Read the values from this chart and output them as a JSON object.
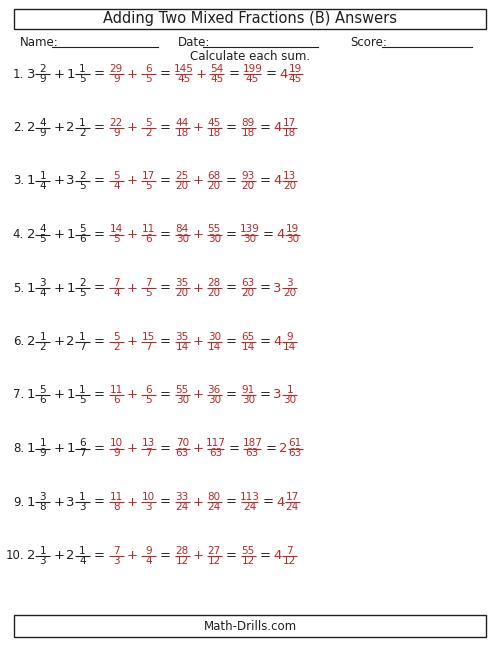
{
  "title": "Adding Two Mixed Fractions (B) Answers",
  "footer": "Math-Drills.com",
  "instruction": "Calculate each sum.",
  "name_label": "Name:",
  "date_label": "Date:",
  "score_label": "Score:",
  "black": "#231f20",
  "red": "#b52a2a",
  "problems": [
    {
      "num": "1.",
      "w1": "3",
      "n1": "2",
      "d1": "9",
      "w2": "1",
      "n2": "1",
      "d2": "5",
      "rn1": "29",
      "rd1": "9",
      "rn2": "6",
      "rd2": "5",
      "cn1": "145",
      "cd1": "45",
      "cn2": "54",
      "cd2": "45",
      "sn": "199",
      "sd": "45",
      "fw": "4",
      "fn": "19",
      "fd": "45"
    },
    {
      "num": "2.",
      "w1": "2",
      "n1": "4",
      "d1": "9",
      "w2": "2",
      "n2": "1",
      "d2": "2",
      "rn1": "22",
      "rd1": "9",
      "rn2": "5",
      "rd2": "2",
      "cn1": "44",
      "cd1": "18",
      "cn2": "45",
      "cd2": "18",
      "sn": "89",
      "sd": "18",
      "fw": "4",
      "fn": "17",
      "fd": "18"
    },
    {
      "num": "3.",
      "w1": "1",
      "n1": "1",
      "d1": "4",
      "w2": "3",
      "n2": "2",
      "d2": "5",
      "rn1": "5",
      "rd1": "4",
      "rn2": "17",
      "rd2": "5",
      "cn1": "25",
      "cd1": "20",
      "cn2": "68",
      "cd2": "20",
      "sn": "93",
      "sd": "20",
      "fw": "4",
      "fn": "13",
      "fd": "20"
    },
    {
      "num": "4.",
      "w1": "2",
      "n1": "4",
      "d1": "5",
      "w2": "1",
      "n2": "5",
      "d2": "6",
      "rn1": "14",
      "rd1": "5",
      "rn2": "11",
      "rd2": "6",
      "cn1": "84",
      "cd1": "30",
      "cn2": "55",
      "cd2": "30",
      "sn": "139",
      "sd": "30",
      "fw": "4",
      "fn": "19",
      "fd": "30"
    },
    {
      "num": "5.",
      "w1": "1",
      "n1": "3",
      "d1": "4",
      "w2": "1",
      "n2": "2",
      "d2": "5",
      "rn1": "7",
      "rd1": "4",
      "rn2": "7",
      "rd2": "5",
      "cn1": "35",
      "cd1": "20",
      "cn2": "28",
      "cd2": "20",
      "sn": "63",
      "sd": "20",
      "fw": "3",
      "fn": "3",
      "fd": "20"
    },
    {
      "num": "6.",
      "w1": "2",
      "n1": "1",
      "d1": "2",
      "w2": "2",
      "n2": "1",
      "d2": "7",
      "rn1": "5",
      "rd1": "2",
      "rn2": "15",
      "rd2": "7",
      "cn1": "35",
      "cd1": "14",
      "cn2": "30",
      "cd2": "14",
      "sn": "65",
      "sd": "14",
      "fw": "4",
      "fn": "9",
      "fd": "14"
    },
    {
      "num": "7.",
      "w1": "1",
      "n1": "5",
      "d1": "6",
      "w2": "1",
      "n2": "1",
      "d2": "5",
      "rn1": "11",
      "rd1": "6",
      "rn2": "6",
      "rd2": "5",
      "cn1": "55",
      "cd1": "30",
      "cn2": "36",
      "cd2": "30",
      "sn": "91",
      "sd": "30",
      "fw": "3",
      "fn": "1",
      "fd": "30"
    },
    {
      "num": "8.",
      "w1": "1",
      "n1": "1",
      "d1": "9",
      "w2": "1",
      "n2": "6",
      "d2": "7",
      "rn1": "10",
      "rd1": "9",
      "rn2": "13",
      "rd2": "7",
      "cn1": "70",
      "cd1": "63",
      "cn2": "117",
      "cd2": "63",
      "sn": "187",
      "sd": "63",
      "fw": "2",
      "fn": "61",
      "fd": "63"
    },
    {
      "num": "9.",
      "w1": "1",
      "n1": "3",
      "d1": "8",
      "w2": "3",
      "n2": "1",
      "d2": "3",
      "rn1": "11",
      "rd1": "8",
      "rn2": "10",
      "rd2": "3",
      "cn1": "33",
      "cd1": "24",
      "cn2": "80",
      "cd2": "24",
      "sn": "113",
      "sd": "24",
      "fw": "4",
      "fn": "17",
      "fd": "24"
    },
    {
      "num": "10.",
      "w1": "2",
      "n1": "1",
      "d1": "3",
      "w2": "2",
      "n2": "1",
      "d2": "4",
      "rn1": "7",
      "rd1": "3",
      "rn2": "9",
      "rd2": "4",
      "cn1": "28",
      "cd1": "12",
      "cn2": "27",
      "cd2": "12",
      "sn": "55",
      "sd": "12",
      "fw": "4",
      "fn": "7",
      "fd": "12"
    }
  ]
}
